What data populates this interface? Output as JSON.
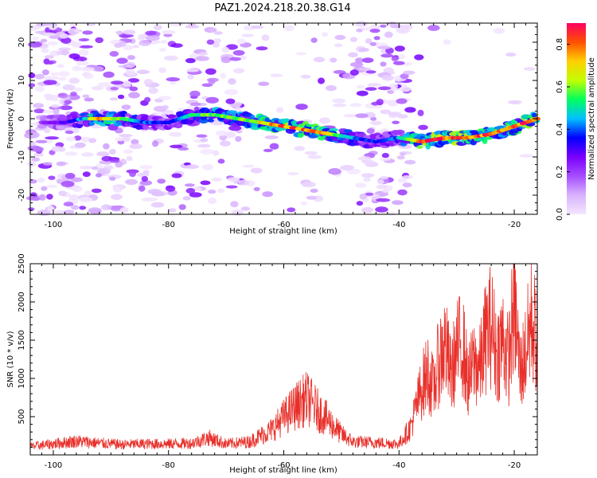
{
  "title": "PAZ1.2024.218.20.38.G14",
  "chart_data": [
    {
      "type": "heatmap",
      "xlabel": "Height of straight line (km)",
      "ylabel": "Frequency (Hz)",
      "xlim": [
        -104,
        -16
      ],
      "ylim": [
        -25,
        25
      ],
      "xticks": [
        -100,
        -80,
        -60,
        -40,
        -20
      ],
      "yticks": [
        -20,
        -10,
        0,
        10,
        20
      ],
      "colorbar": {
        "label": "Normalized spectral amplitude",
        "range": [
          0.0,
          0.9
        ],
        "ticks": [
          0.0,
          0.2,
          0.4,
          0.6,
          0.8
        ],
        "colormap": [
          "#f3e6ff",
          "#d9b3ff",
          "#a64dff",
          "#7a00ff",
          "#0000ff",
          "#00c0ff",
          "#00ff60",
          "#c0ff00",
          "#ffd000",
          "#ff5000",
          "#ff0060"
        ]
      },
      "ridge": {
        "x": [
          -102,
          -98,
          -95,
          -92,
          -88,
          -84,
          -80,
          -76,
          -72,
          -68,
          -64,
          -60,
          -56,
          -52,
          -48,
          -44,
          -40,
          -36,
          -32,
          -28,
          -24,
          -20,
          -16
        ],
        "frequency_hz": [
          -1,
          -1,
          0,
          0,
          0,
          -1,
          -1,
          1,
          1,
          0,
          -1,
          -2,
          -3,
          -4,
          -5,
          -6,
          -5,
          -6,
          -5,
          -5,
          -4,
          -2,
          0
        ],
        "amplitude": [
          0.2,
          0.3,
          0.45,
          0.75,
          0.55,
          0.4,
          0.35,
          0.55,
          0.6,
          0.55,
          0.7,
          0.8,
          0.8,
          0.7,
          0.45,
          0.35,
          0.45,
          0.9,
          0.85,
          0.85,
          0.8,
          0.8,
          0.85
        ]
      }
    },
    {
      "type": "line",
      "xlabel": "Height of straight line (km)",
      "ylabel": "SNR (10 * v/v)",
      "xlim": [
        -104,
        -16
      ],
      "ylim": [
        0,
        2500
      ],
      "xticks": [
        -100,
        -80,
        -60,
        -40,
        -20
      ],
      "yticks": [
        500,
        1000,
        1500,
        2000,
        2500
      ],
      "color": "#e8302a",
      "series": [
        {
          "x": [
            -104,
            -100,
            -96,
            -92,
            -88,
            -84,
            -80,
            -76,
            -73,
            -70,
            -66,
            -62,
            -60,
            -58,
            -56,
            -54,
            -52,
            -50,
            -48,
            -44,
            -40,
            -38,
            -37,
            -36,
            -35,
            -34,
            -33,
            -32,
            -31,
            -30,
            -29,
            -28,
            -27,
            -26,
            -25,
            -24,
            -23,
            -22,
            -21,
            -20,
            -19,
            -18,
            -17,
            -16
          ],
          "values": [
            120,
            160,
            200,
            170,
            150,
            160,
            160,
            170,
            250,
            160,
            190,
            370,
            550,
            700,
            820,
            640,
            480,
            300,
            190,
            180,
            160,
            400,
            700,
            1000,
            1200,
            950,
            1400,
            1600,
            1150,
            1500,
            1650,
            1050,
            1350,
            1250,
            1700,
            1900,
            1450,
            1700,
            1350,
            2250,
            1200,
            1500,
            2000,
            1600
          ]
        }
      ]
    }
  ]
}
